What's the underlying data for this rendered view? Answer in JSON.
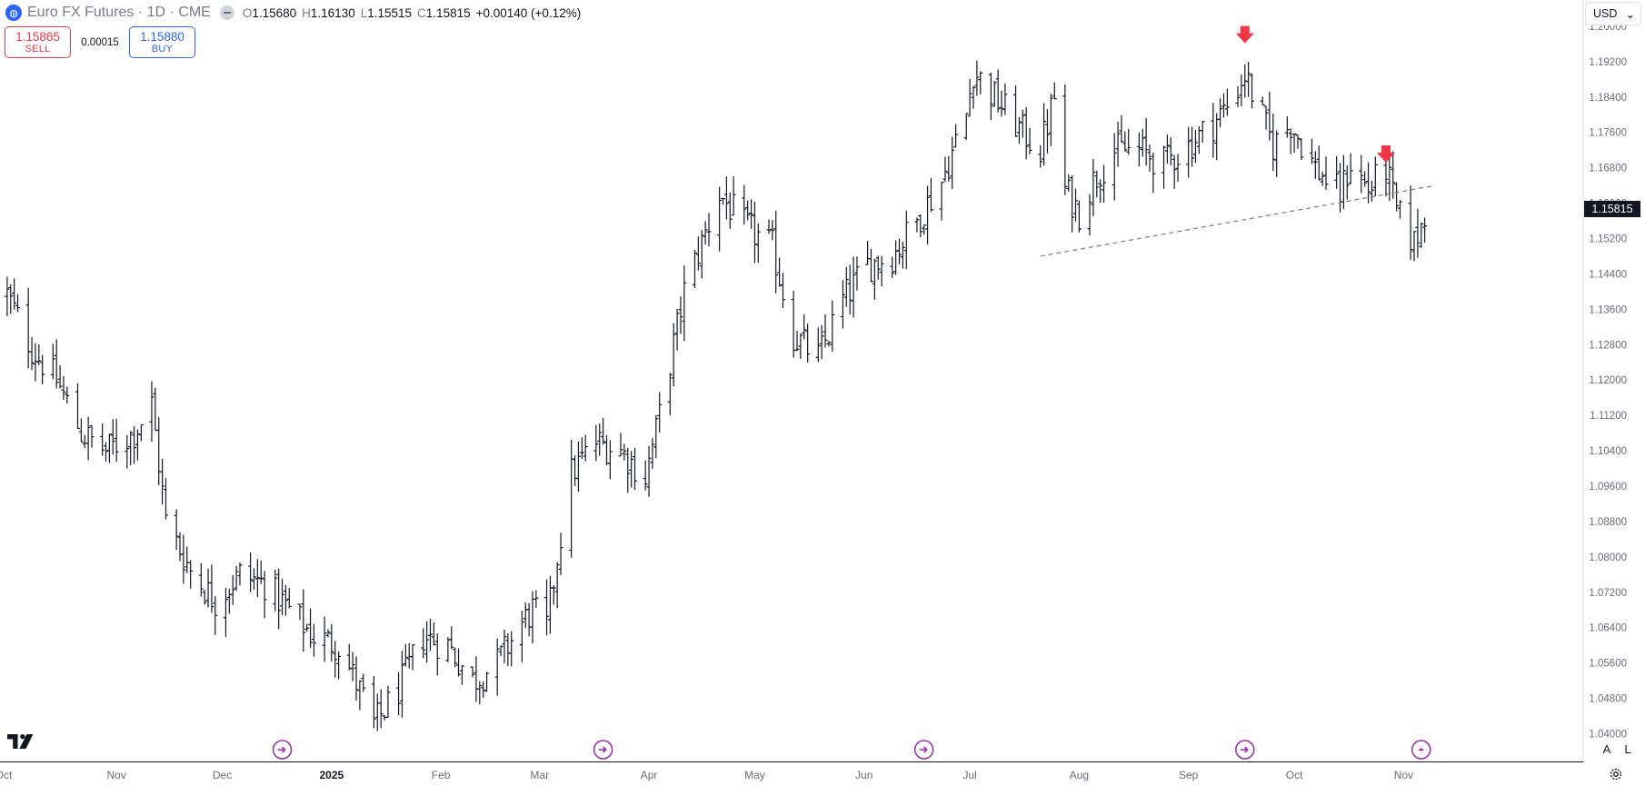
{
  "legend": {
    "title": "Euro FX Futures · 1D · CME",
    "open_key": "O",
    "open": "1.15680",
    "high_key": "H",
    "high": "1.16130",
    "low_key": "L",
    "low": "1.15515",
    "close_key": "C",
    "close": "1.15815",
    "change": "+0.00140 (+0.12%)"
  },
  "trade": {
    "sell_price": "1.15865",
    "sell_label": "SELL",
    "spread": "0.00015",
    "buy_price": "1.15880",
    "buy_label": "BUY"
  },
  "currency": {
    "label": "USD",
    "chevron": "⌄"
  },
  "last_price": "1.15815",
  "scale_buttons": {
    "auto": "A",
    "log": "L"
  },
  "colors": {
    "bar": "#131722",
    "down_arrow": "#f23645",
    "event_icon": "#9c27b0",
    "trendline": "#787b86",
    "last_price_bg": "#131722",
    "sell": "#f23645",
    "buy": "#2962ff"
  },
  "icons": [
    "globe-icon",
    "collapse-icon",
    "tradingview-logo-icon",
    "event-icon",
    "settings-icon"
  ],
  "chart_data": {
    "type": "ohlc",
    "symbol": "Euro FX Futures",
    "interval": "1D",
    "exchange": "CME",
    "currency": "USD",
    "ylim": [
      1.036,
      1.2006
    ],
    "y_ticks": [
      "1.04000",
      "1.04800",
      "1.05600",
      "1.06400",
      "1.07200",
      "1.08000",
      "1.08800",
      "1.09600",
      "1.10400",
      "1.11200",
      "1.12000",
      "1.12800",
      "1.13600",
      "1.14400",
      "1.15200",
      "1.16000",
      "1.16800",
      "1.17600",
      "1.18400",
      "1.19200",
      "1.20000"
    ],
    "x_tick_labels": [
      "Oct",
      "Nov",
      "Dec",
      "2025",
      "Feb",
      "Mar",
      "Apr",
      "May",
      "Jun",
      "Jul",
      "Aug",
      "Sep",
      "Oct",
      "Nov"
    ],
    "x_tick_bold": [
      "2025"
    ],
    "grid": false,
    "close_anchors": [
      {
        "date": "2024-10-01",
        "close": 1.1393
      },
      {
        "date": "2024-10-08",
        "close": 1.127
      },
      {
        "date": "2024-10-15",
        "close": 1.12
      },
      {
        "date": "2024-10-22",
        "close": 1.108
      },
      {
        "date": "2024-10-29",
        "close": 1.104
      },
      {
        "date": "2024-11-06",
        "close": 1.108
      },
      {
        "date": "2024-11-11",
        "close": 1.1145
      },
      {
        "date": "2024-11-15",
        "close": 1.088
      },
      {
        "date": "2024-11-22",
        "close": 1.077
      },
      {
        "date": "2024-11-29",
        "close": 1.07
      },
      {
        "date": "2024-12-06",
        "close": 1.076
      },
      {
        "date": "2024-12-13",
        "close": 1.074
      },
      {
        "date": "2024-12-20",
        "close": 1.068
      },
      {
        "date": "2024-12-27",
        "close": 1.062
      },
      {
        "date": "2025-01-03",
        "close": 1.06
      },
      {
        "date": "2025-01-10",
        "close": 1.048
      },
      {
        "date": "2025-01-13",
        "close": 1.042
      },
      {
        "date": "2025-01-20",
        "close": 1.05
      },
      {
        "date": "2025-01-27",
        "close": 1.062
      },
      {
        "date": "2025-02-03",
        "close": 1.06
      },
      {
        "date": "2025-02-10",
        "close": 1.052
      },
      {
        "date": "2025-02-17",
        "close": 1.056
      },
      {
        "date": "2025-02-24",
        "close": 1.065
      },
      {
        "date": "2025-02-27",
        "close": 1.068
      },
      {
        "date": "2025-03-03",
        "close": 1.064
      },
      {
        "date": "2025-03-06",
        "close": 1.08
      },
      {
        "date": "2025-03-10",
        "close": 1.099
      },
      {
        "date": "2025-03-17",
        "close": 1.106
      },
      {
        "date": "2025-03-24",
        "close": 1.104
      },
      {
        "date": "2025-03-31",
        "close": 1.098
      },
      {
        "date": "2025-04-04",
        "close": 1.112
      },
      {
        "date": "2025-04-11",
        "close": 1.14
      },
      {
        "date": "2025-04-21",
        "close": 1.162
      },
      {
        "date": "2025-04-28",
        "close": 1.155
      },
      {
        "date": "2025-05-06",
        "close": 1.15
      },
      {
        "date": "2025-05-12",
        "close": 1.13
      },
      {
        "date": "2025-05-19",
        "close": 1.125
      },
      {
        "date": "2025-05-26",
        "close": 1.138
      },
      {
        "date": "2025-06-02",
        "close": 1.146
      },
      {
        "date": "2025-06-09",
        "close": 1.148
      },
      {
        "date": "2025-06-16",
        "close": 1.156
      },
      {
        "date": "2025-06-23",
        "close": 1.165
      },
      {
        "date": "2025-06-30",
        "close": 1.18
      },
      {
        "date": "2025-07-02",
        "close": 1.19
      },
      {
        "date": "2025-07-09",
        "close": 1.183
      },
      {
        "date": "2025-07-16",
        "close": 1.176
      },
      {
        "date": "2025-07-21",
        "close": 1.172
      },
      {
        "date": "2025-07-25",
        "close": 1.184
      },
      {
        "date": "2025-07-28",
        "close": 1.163
      },
      {
        "date": "2025-08-01",
        "close": 1.158
      },
      {
        "date": "2025-08-05",
        "close": 1.165
      },
      {
        "date": "2025-08-11",
        "close": 1.172
      },
      {
        "date": "2025-08-18",
        "close": 1.172
      },
      {
        "date": "2025-08-25",
        "close": 1.169
      },
      {
        "date": "2025-09-01",
        "close": 1.173
      },
      {
        "date": "2025-09-08",
        "close": 1.178
      },
      {
        "date": "2025-09-12",
        "close": 1.182
      },
      {
        "date": "2025-09-17",
        "close": 1.189
      },
      {
        "date": "2025-09-22",
        "close": 1.179
      },
      {
        "date": "2025-09-25",
        "close": 1.173
      },
      {
        "date": "2025-09-30",
        "close": 1.178
      },
      {
        "date": "2025-10-07",
        "close": 1.168
      },
      {
        "date": "2025-10-14",
        "close": 1.162
      },
      {
        "date": "2025-10-17",
        "close": 1.169
      },
      {
        "date": "2025-10-22",
        "close": 1.163
      },
      {
        "date": "2025-10-27",
        "close": 1.168
      },
      {
        "date": "2025-10-30",
        "close": 1.158
      },
      {
        "date": "2025-11-04",
        "close": 1.151
      },
      {
        "date": "2025-11-06",
        "close": 1.155
      },
      {
        "date": "2025-11-07",
        "close": 1.1582
      }
    ],
    "trendline": {
      "style": "dashed",
      "start": {
        "date": "2025-07-21",
        "price": 1.148
      },
      "end": {
        "date": "2025-11-10",
        "price": 1.164
      }
    },
    "markers": [
      {
        "type": "down-arrow",
        "date": "2025-09-17",
        "price": 1.198
      },
      {
        "type": "down-arrow",
        "date": "2025-10-27",
        "price": 1.171
      }
    ],
    "event_icons": [
      {
        "date": "2024-12-18",
        "type": "economic-event"
      },
      {
        "date": "2025-03-19",
        "type": "economic-event"
      },
      {
        "date": "2025-06-18",
        "type": "economic-event"
      },
      {
        "date": "2025-09-17",
        "type": "economic-event"
      },
      {
        "date": "2025-11-06",
        "type": "upcoming-event"
      }
    ]
  }
}
